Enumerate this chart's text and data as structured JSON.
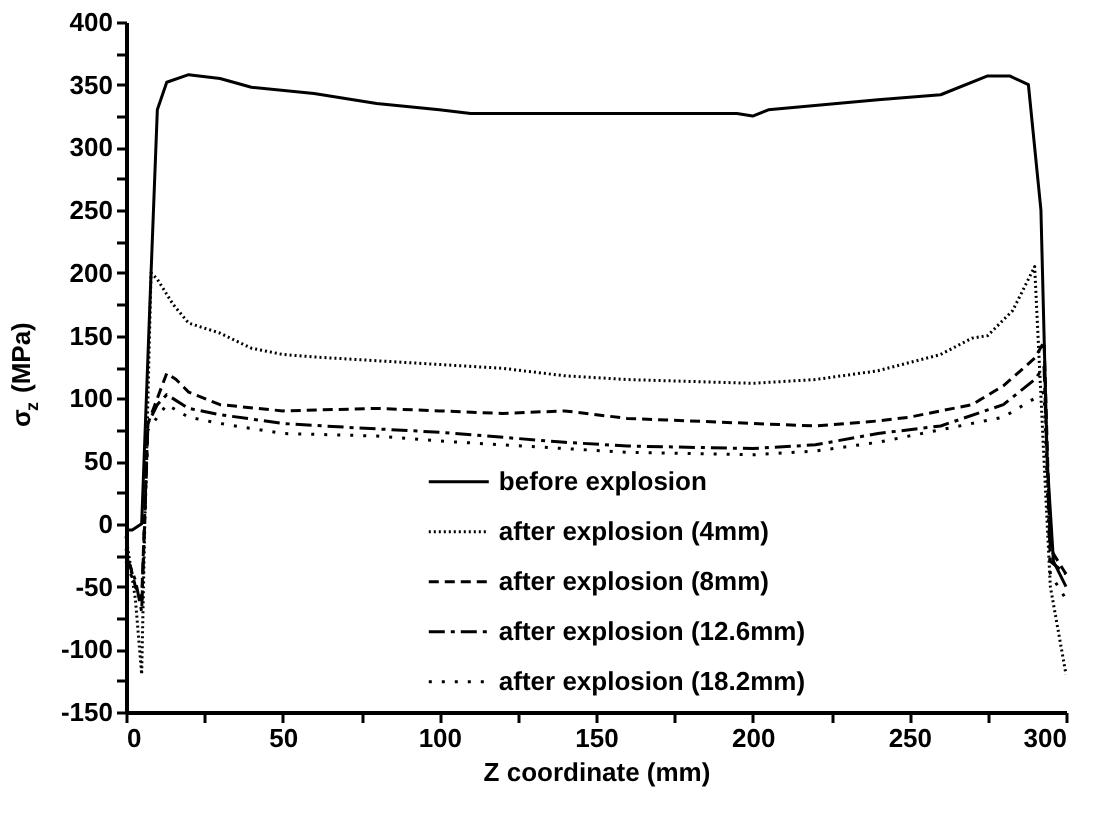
{
  "chart_data": {
    "type": "line",
    "xlabel": "Z coordinate (mm)",
    "ylabel": "σ$_{z}$ (MPa)",
    "xlim": [
      0,
      300
    ],
    "ylim": [
      -150,
      400
    ],
    "xticks": [
      0,
      {
        "value": 25,
        "label": null
      },
      50,
      {
        "value": 75,
        "label": null
      },
      100,
      {
        "value": 125,
        "label": null
      },
      150,
      {
        "value": 175,
        "label": null
      },
      200,
      {
        "value": 225,
        "label": null
      },
      250,
      {
        "value": 275,
        "label": null
      },
      300
    ],
    "yticks": [
      -150,
      {
        "value": -125,
        "label": null
      },
      -100,
      {
        "value": -75,
        "label": null
      },
      -50,
      {
        "value": -25,
        "label": null
      },
      0,
      {
        "value": 25,
        "label": null
      },
      50,
      {
        "value": 75,
        "label": null
      },
      100,
      {
        "value": 125,
        "label": null
      },
      150,
      {
        "value": 175,
        "label": null
      },
      200,
      {
        "value": 225,
        "label": null
      },
      250,
      {
        "value": 275,
        "label": null
      },
      300,
      {
        "value": 325,
        "label": null
      },
      350,
      {
        "value": 375,
        "label": null
      },
      400
    ],
    "grid": false,
    "legend": "bottom",
    "marker": "none",
    "series": [
      {
        "name": "before explosion",
        "color": "#000000",
        "line_style": "solid",
        "x": [
          0,
          2,
          5,
          8,
          10,
          13,
          20,
          30,
          40,
          60,
          80,
          100,
          110,
          150,
          195,
          200,
          205,
          240,
          260,
          275,
          282,
          288,
          292,
          294,
          296,
          300
        ],
        "values": [
          -5,
          -5,
          0,
          200,
          330,
          352,
          358,
          355,
          348,
          343,
          335,
          330,
          327,
          327,
          327,
          325,
          330,
          338,
          342,
          357,
          357,
          350,
          250,
          50,
          -30,
          -50
        ]
      },
      {
        "name": "after explosion (4mm)",
        "color": "#000000",
        "line_style": "dotted",
        "x": [
          0,
          3,
          5,
          6,
          8,
          10,
          15,
          20,
          30,
          40,
          50,
          60,
          80,
          100,
          120,
          140,
          160,
          200,
          220,
          240,
          260,
          270,
          275,
          283,
          290,
          293,
          295,
          300
        ],
        "values": [
          -10,
          -60,
          -120,
          0,
          200,
          195,
          175,
          160,
          152,
          140,
          135,
          133,
          130,
          127,
          124,
          118,
          115,
          112,
          115,
          122,
          135,
          148,
          150,
          170,
          205,
          50,
          -50,
          -120
        ]
      },
      {
        "name": "after explosion (8mm)",
        "color": "#000000",
        "line_style": "dashed",
        "x": [
          0,
          3,
          5,
          7,
          10,
          13,
          16,
          20,
          30,
          50,
          80,
          100,
          120,
          140,
          160,
          200,
          220,
          240,
          250,
          270,
          280,
          290,
          293,
          295,
          300
        ],
        "values": [
          -20,
          -50,
          -60,
          80,
          100,
          120,
          115,
          105,
          95,
          90,
          92,
          90,
          88,
          90,
          84,
          80,
          78,
          82,
          85,
          95,
          110,
          132,
          145,
          -20,
          -40
        ]
      },
      {
        "name": "after explosion (12.6mm)",
        "color": "#000000",
        "line_style": "dashdot",
        "x": [
          0,
          3,
          5,
          7,
          10,
          13,
          20,
          30,
          50,
          70,
          100,
          140,
          160,
          200,
          220,
          240,
          260,
          280,
          290,
          293,
          295,
          300
        ],
        "values": [
          -25,
          -45,
          -70,
          80,
          95,
          103,
          92,
          87,
          80,
          77,
          73,
          65,
          62,
          60,
          63,
          72,
          78,
          95,
          115,
          125,
          -30,
          -40
        ]
      },
      {
        "name": "after explosion (18.2mm)",
        "color": "#000000",
        "line_style": "sparse_dotted",
        "x": [
          0,
          3,
          5,
          7,
          10,
          13,
          20,
          30,
          50,
          80,
          100,
          140,
          160,
          200,
          220,
          240,
          260,
          280,
          290,
          293,
          295,
          300
        ],
        "values": [
          -30,
          -50,
          -65,
          75,
          85,
          95,
          85,
          80,
          72,
          70,
          66,
          60,
          57,
          55,
          58,
          65,
          75,
          85,
          100,
          105,
          -40,
          -60
        ]
      }
    ]
  }
}
